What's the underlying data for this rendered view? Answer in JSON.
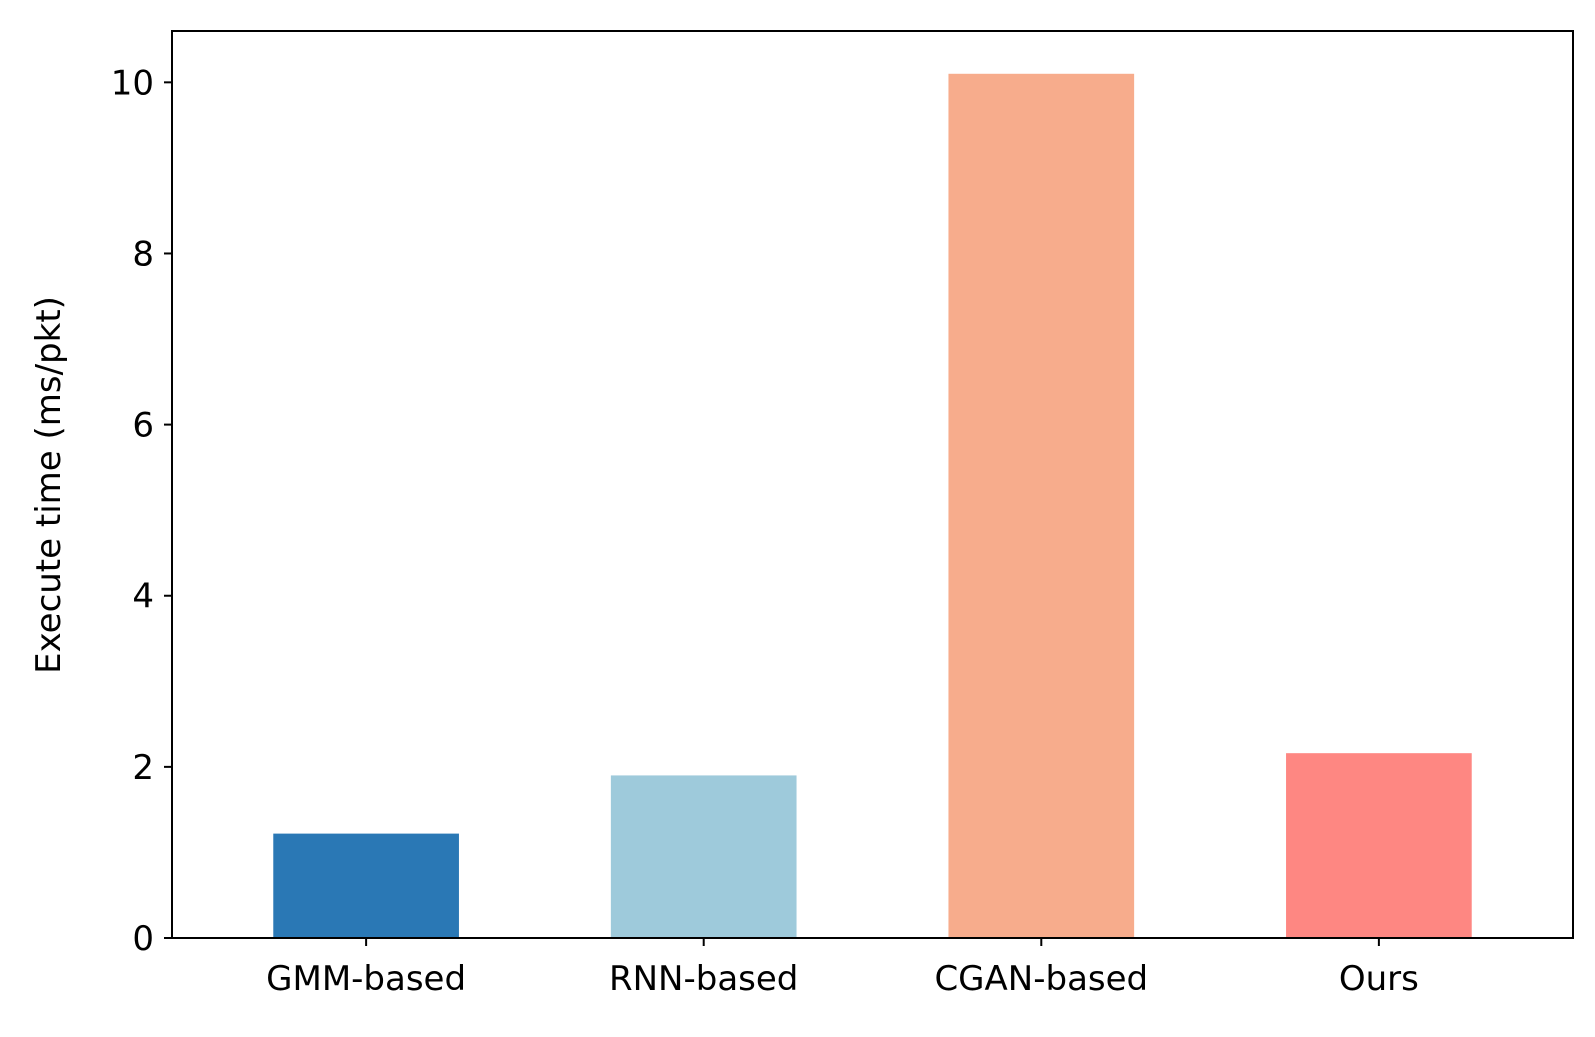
{
  "chart_data": {
    "type": "bar",
    "title": "",
    "xlabel": "",
    "ylabel": "Execute time (ms/pkt)",
    "categories": [
      "GMM-based",
      "RNN-based",
      "CGAN-based",
      "Ours"
    ],
    "values": [
      1.22,
      1.9,
      10.1,
      2.16
    ],
    "colors": [
      "#2a78b5",
      "#9ecadb",
      "#f7ac8c",
      "#fe8782"
    ],
    "ylim": [
      0,
      10.6
    ],
    "yticks": [
      0,
      2,
      4,
      6,
      8,
      10
    ],
    "grid": false,
    "legend": "none"
  }
}
